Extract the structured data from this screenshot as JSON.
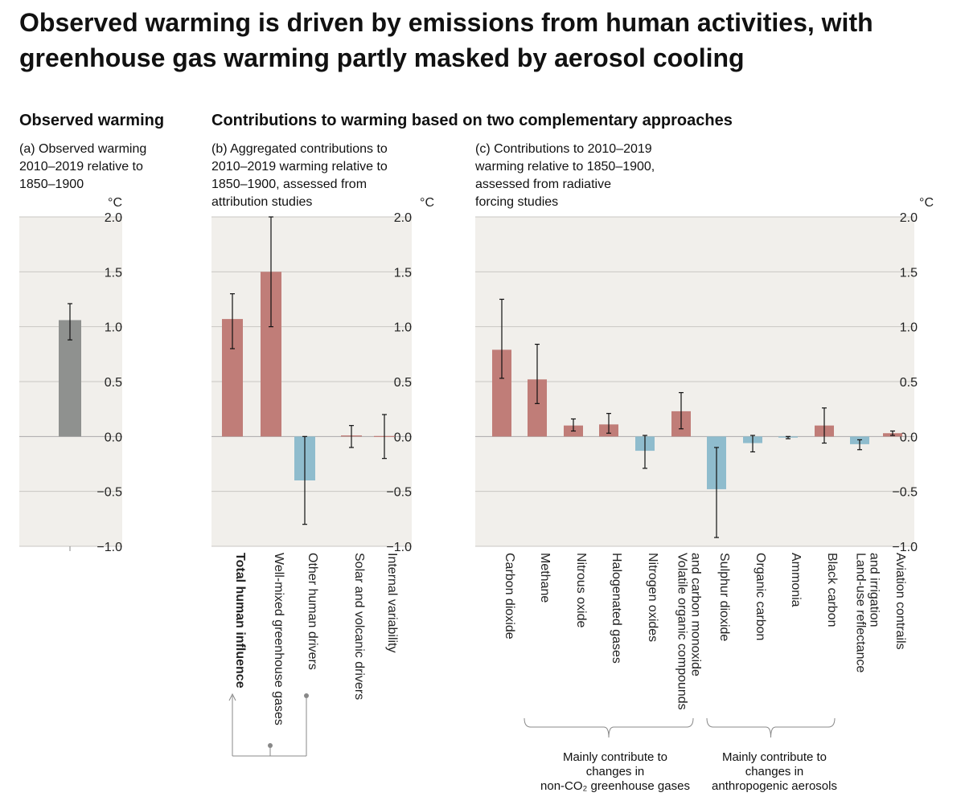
{
  "title": {
    "line1": "Observed warming is driven by emissions from human activities, with",
    "line2": "greenhouse gas warming partly masked by aerosol cooling"
  },
  "sections": {
    "observed": "Observed warming",
    "contributions": "Contributions to warming based on two complementary approaches"
  },
  "panels": {
    "a": [
      "(a) Observed warming",
      "2010–2019 relative to",
      "1850–1900"
    ],
    "b": [
      "(b) Aggregated contributions to",
      "2010–2019 warming relative to",
      "1850–1900, assessed from",
      "attribution studies"
    ],
    "c": [
      "(c) Contributions to 2010–2019",
      "warming relative to 1850–1900,",
      "assessed from radiative",
      "forcing studies"
    ]
  },
  "unit": "°C",
  "colors": {
    "panel_bg": "#f1efeb",
    "warming": "#c07d78",
    "cooling": "#8fbccd",
    "observed": "#8f918f",
    "axis_text": "#222222",
    "grid": "#c9c7c3",
    "bracket": "#888888"
  },
  "brackets": {
    "ghg": [
      "Mainly contribute to",
      "changes in",
      "non-CO₂ greenhouse gases"
    ],
    "aerosols": [
      "Mainly contribute to",
      "changes in",
      "anthropogenic aerosols"
    ]
  },
  "chart_data": [
    {
      "panel": "a",
      "type": "bar",
      "ylabel": "°C",
      "ylim": [
        -1.0,
        2.0
      ],
      "yticks": [
        "2.0",
        "1.5",
        "1.0",
        "0.5",
        "0.0",
        "−0.5",
        "−1.0"
      ],
      "categories": [
        ""
      ],
      "values": [
        1.06
      ],
      "error_low": [
        0.88
      ],
      "error_high": [
        1.21
      ],
      "grid": true
    },
    {
      "panel": "b",
      "type": "bar",
      "ylabel": "°C",
      "ylim": [
        -1.0,
        2.0
      ],
      "yticks": [
        "2.0",
        "1.5",
        "1.0",
        "0.5",
        "0.0",
        "−0.5",
        "−1.0"
      ],
      "categories": [
        "Total human influence",
        "Well-mixed greenhouse gases",
        "Other human drivers",
        "Solar and volcanic drivers",
        "Internal variability"
      ],
      "values": [
        1.07,
        1.5,
        -0.4,
        0.01,
        0.0
      ],
      "error_low": [
        0.8,
        1.0,
        -0.8,
        -0.1,
        -0.2
      ],
      "error_high": [
        1.3,
        2.0,
        0.0,
        0.1,
        0.2
      ],
      "grid": true
    },
    {
      "panel": "c",
      "type": "bar",
      "ylabel": "°C",
      "ylim": [
        -1.0,
        2.0
      ],
      "yticks": [
        "2.0",
        "1.5",
        "1.0",
        "0.5",
        "0.0",
        "−0.5",
        "−1.0"
      ],
      "categories": [
        "Carbon dioxide",
        "Methane",
        "Nitrous oxide",
        "Halogenated gases",
        "Nitrogen oxides",
        "Volatile organic compounds and carbon monoxide",
        "Sulphur dioxide",
        "Organic carbon",
        "Ammonia",
        "Black carbon",
        "Land-use reflectance and irrigation",
        "Aviation contrails"
      ],
      "label_lines": [
        [
          "Carbon dioxide"
        ],
        [
          "Methane"
        ],
        [
          "Nitrous oxide"
        ],
        [
          "Halogenated gases"
        ],
        [
          "Nitrogen oxides"
        ],
        [
          "Volatile organic compounds",
          "and carbon monoxide"
        ],
        [
          "Sulphur dioxide"
        ],
        [
          "Organic carbon"
        ],
        [
          "Ammonia"
        ],
        [
          "Black carbon"
        ],
        [
          "Land-use reflectance",
          "and irrigation"
        ],
        [
          "Aviation contrails"
        ]
      ],
      "values": [
        0.79,
        0.52,
        0.1,
        0.11,
        -0.13,
        0.23,
        -0.48,
        -0.06,
        -0.01,
        0.1,
        -0.07,
        0.03
      ],
      "error_low": [
        0.53,
        0.3,
        0.05,
        0.03,
        -0.29,
        0.07,
        -0.92,
        -0.14,
        -0.02,
        -0.06,
        -0.12,
        0.01
      ],
      "error_high": [
        1.25,
        0.84,
        0.16,
        0.21,
        0.01,
        0.4,
        -0.1,
        0.01,
        0.0,
        0.26,
        -0.03,
        0.05
      ],
      "grid": true
    }
  ]
}
